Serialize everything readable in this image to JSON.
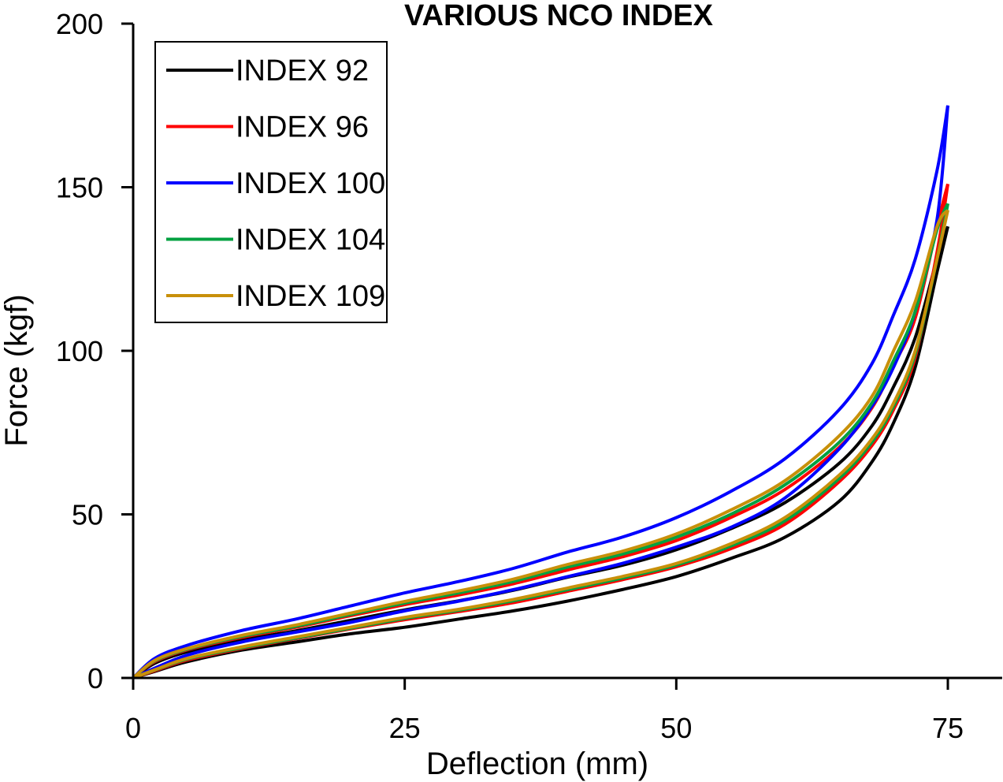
{
  "chart_data": {
    "type": "line",
    "title": "VARIOUS NCO INDEX",
    "xlabel": "Deflection (mm)",
    "ylabel": "Force (kgf)",
    "xlim": [
      0,
      80
    ],
    "ylim": [
      0,
      200
    ],
    "xticks": [
      0,
      25,
      50,
      75
    ],
    "yticks": [
      0,
      50,
      100,
      150,
      200
    ],
    "grid": false,
    "legend_position": "top-left",
    "x": [
      0,
      2,
      5,
      10,
      15,
      20,
      25,
      30,
      35,
      40,
      45,
      50,
      55,
      60,
      65,
      68,
      70,
      72,
      74,
      75
    ],
    "series": [
      {
        "name": "INDEX 92",
        "color": "#000000",
        "loading": [
          0,
          4.5,
          8,
          11.6,
          14.4,
          17.6,
          20.8,
          23.6,
          26.8,
          30.8,
          34.4,
          39.2,
          45.6,
          53.6,
          65.6,
          77,
          89,
          104,
          128,
          138
        ],
        "unloading": [
          0,
          2,
          5,
          8.5,
          11,
          13.5,
          15.5,
          18,
          20.5,
          23.5,
          27,
          31,
          36.5,
          43,
          54,
          66,
          78,
          95,
          124,
          138
        ]
      },
      {
        "name": "INDEX 96",
        "color": "#ff0000",
        "loading": [
          0,
          5,
          8.6,
          12.4,
          15.5,
          19,
          22.4,
          25.4,
          28.8,
          33,
          37,
          42,
          49,
          57.6,
          70.5,
          82.5,
          95.5,
          110,
          138,
          151
        ],
        "unloading": [
          0,
          2.2,
          5.5,
          9,
          12,
          15,
          17.8,
          20.3,
          23,
          26.5,
          30,
          34,
          39.5,
          47,
          60,
          71,
          82,
          98,
          130,
          151
        ]
      },
      {
        "name": "INDEX 100",
        "color": "#0000ff",
        "loading": [
          0,
          6,
          10,
          14.5,
          18,
          22,
          26,
          29.5,
          33.5,
          38.5,
          43,
          49,
          57,
          67,
          82,
          96,
          111,
          128,
          155,
          175
        ],
        "unloading": [
          0,
          3,
          7,
          11,
          14,
          17,
          20.5,
          23.5,
          27,
          31,
          35,
          40,
          46,
          55,
          70,
          83,
          95,
          112,
          140,
          175
        ]
      },
      {
        "name": "INDEX 104",
        "color": "#00a040",
        "loading": [
          0,
          5.2,
          8.8,
          12.7,
          15.8,
          19.4,
          22.9,
          26,
          29.5,
          33.9,
          37.8,
          43,
          50,
          59,
          72,
          84,
          97,
          112,
          137,
          145
        ],
        "unloading": [
          0,
          2.4,
          5.8,
          9.2,
          12.2,
          15.2,
          18.2,
          20.7,
          23.6,
          27,
          30.5,
          34.5,
          40.3,
          48,
          61,
          72,
          83,
          99,
          128,
          145
        ]
      },
      {
        "name": "INDEX 109",
        "color": "#c8900a",
        "loading": [
          0,
          5.4,
          9,
          13,
          16.2,
          19.8,
          23.4,
          26.6,
          30.2,
          34.7,
          38.7,
          44,
          51.3,
          60.3,
          74,
          86,
          100,
          115,
          138,
          143
        ],
        "unloading": [
          0,
          2.5,
          6,
          9.5,
          12.5,
          15.5,
          18.5,
          21,
          24,
          27.5,
          31,
          35,
          41,
          49,
          62,
          73,
          84,
          100,
          128,
          143
        ]
      }
    ]
  }
}
